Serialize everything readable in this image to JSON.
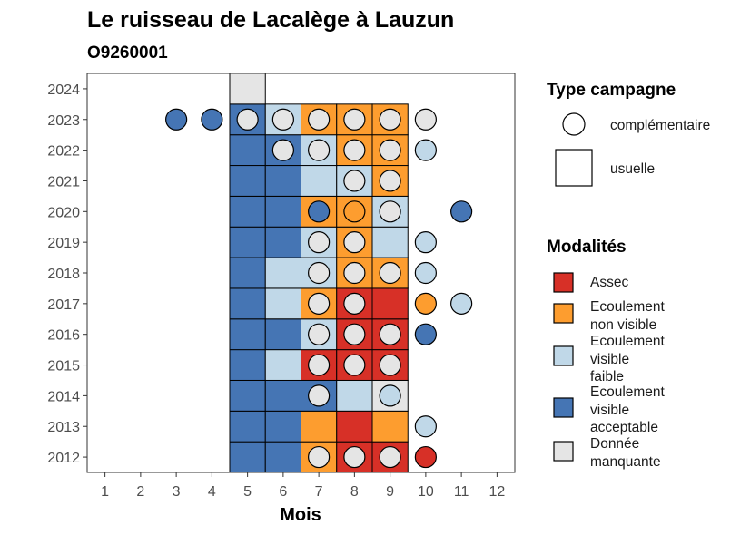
{
  "chart_data": {
    "type": "heatmap",
    "title": "Le ruisseau de Lacalège à Lauzun",
    "subtitle": "O9260001",
    "xlabel": "Mois",
    "ylabel": "",
    "x_ticks": [
      "1",
      "2",
      "3",
      "4",
      "5",
      "6",
      "7",
      "8",
      "9",
      "10",
      "11",
      "12"
    ],
    "y_ticks": [
      "2012",
      "2013",
      "2014",
      "2015",
      "2016",
      "2017",
      "2018",
      "2019",
      "2020",
      "2021",
      "2022",
      "2023",
      "2024"
    ],
    "xlim": [
      0.5,
      12.5
    ],
    "ylim": [
      2011.5,
      2024.5
    ],
    "grid": false,
    "legend_position": "right",
    "colors": {
      "assec": "#d73027",
      "ecoulement_non_visible": "#fd9d2f",
      "ecoulement_visible_faible": "#c0d8e8",
      "ecoulement_visible_acceptable": "#4575b4",
      "donnee_manquante": "#e5e5e5"
    },
    "legend": {
      "type_campagne": {
        "title": "Type campagne",
        "items": [
          {
            "key": "complementaire",
            "label": "complémentaire",
            "shape": "circle"
          },
          {
            "key": "usuelle",
            "label": "usuelle",
            "shape": "square"
          }
        ]
      },
      "modalites": {
        "title": "Modalités",
        "items": [
          {
            "key": "assec",
            "lines": [
              "Assec"
            ]
          },
          {
            "key": "ecoulement_non_visible",
            "lines": [
              "Ecoulement",
              "non visible"
            ]
          },
          {
            "key": "ecoulement_visible_faible",
            "lines": [
              "Ecoulement",
              "visible",
              "faible"
            ]
          },
          {
            "key": "ecoulement_visible_acceptable",
            "lines": [
              "Ecoulement",
              "visible",
              "acceptable"
            ]
          },
          {
            "key": "donnee_manquante",
            "lines": [
              "Donnée",
              "manquante"
            ]
          }
        ]
      }
    },
    "usuelle": [
      {
        "year": 2012,
        "month": 5,
        "modalite": "ecoulement_visible_acceptable"
      },
      {
        "year": 2012,
        "month": 6,
        "modalite": "ecoulement_visible_acceptable"
      },
      {
        "year": 2012,
        "month": 7,
        "modalite": "ecoulement_non_visible"
      },
      {
        "year": 2012,
        "month": 8,
        "modalite": "assec"
      },
      {
        "year": 2012,
        "month": 9,
        "modalite": "assec"
      },
      {
        "year": 2013,
        "month": 5,
        "modalite": "ecoulement_visible_acceptable"
      },
      {
        "year": 2013,
        "month": 6,
        "modalite": "ecoulement_visible_acceptable"
      },
      {
        "year": 2013,
        "month": 7,
        "modalite": "ecoulement_non_visible"
      },
      {
        "year": 2013,
        "month": 8,
        "modalite": "assec"
      },
      {
        "year": 2013,
        "month": 9,
        "modalite": "ecoulement_non_visible"
      },
      {
        "year": 2014,
        "month": 5,
        "modalite": "ecoulement_visible_acceptable"
      },
      {
        "year": 2014,
        "month": 6,
        "modalite": "ecoulement_visible_acceptable"
      },
      {
        "year": 2014,
        "month": 7,
        "modalite": "ecoulement_visible_acceptable"
      },
      {
        "year": 2014,
        "month": 8,
        "modalite": "ecoulement_visible_faible"
      },
      {
        "year": 2014,
        "month": 9,
        "modalite": "donnee_manquante"
      },
      {
        "year": 2015,
        "month": 5,
        "modalite": "ecoulement_visible_acceptable"
      },
      {
        "year": 2015,
        "month": 6,
        "modalite": "ecoulement_visible_faible"
      },
      {
        "year": 2015,
        "month": 7,
        "modalite": "assec"
      },
      {
        "year": 2015,
        "month": 8,
        "modalite": "assec"
      },
      {
        "year": 2015,
        "month": 9,
        "modalite": "assec"
      },
      {
        "year": 2016,
        "month": 5,
        "modalite": "ecoulement_visible_acceptable"
      },
      {
        "year": 2016,
        "month": 6,
        "modalite": "ecoulement_visible_acceptable"
      },
      {
        "year": 2016,
        "month": 7,
        "modalite": "ecoulement_visible_faible"
      },
      {
        "year": 2016,
        "month": 8,
        "modalite": "assec"
      },
      {
        "year": 2016,
        "month": 9,
        "modalite": "assec"
      },
      {
        "year": 2017,
        "month": 5,
        "modalite": "ecoulement_visible_acceptable"
      },
      {
        "year": 2017,
        "month": 6,
        "modalite": "ecoulement_visible_faible"
      },
      {
        "year": 2017,
        "month": 7,
        "modalite": "ecoulement_non_visible"
      },
      {
        "year": 2017,
        "month": 8,
        "modalite": "assec"
      },
      {
        "year": 2017,
        "month": 9,
        "modalite": "assec"
      },
      {
        "year": 2018,
        "month": 5,
        "modalite": "ecoulement_visible_acceptable"
      },
      {
        "year": 2018,
        "month": 6,
        "modalite": "ecoulement_visible_faible"
      },
      {
        "year": 2018,
        "month": 7,
        "modalite": "ecoulement_visible_faible"
      },
      {
        "year": 2018,
        "month": 8,
        "modalite": "ecoulement_non_visible"
      },
      {
        "year": 2018,
        "month": 9,
        "modalite": "ecoulement_non_visible"
      },
      {
        "year": 2019,
        "month": 5,
        "modalite": "ecoulement_visible_acceptable"
      },
      {
        "year": 2019,
        "month": 6,
        "modalite": "ecoulement_visible_acceptable"
      },
      {
        "year": 2019,
        "month": 7,
        "modalite": "ecoulement_visible_faible"
      },
      {
        "year": 2019,
        "month": 8,
        "modalite": "ecoulement_non_visible"
      },
      {
        "year": 2019,
        "month": 9,
        "modalite": "ecoulement_visible_faible"
      },
      {
        "year": 2020,
        "month": 5,
        "modalite": "ecoulement_visible_acceptable"
      },
      {
        "year": 2020,
        "month": 6,
        "modalite": "ecoulement_visible_acceptable"
      },
      {
        "year": 2020,
        "month": 7,
        "modalite": "ecoulement_non_visible"
      },
      {
        "year": 2020,
        "month": 8,
        "modalite": "ecoulement_non_visible"
      },
      {
        "year": 2020,
        "month": 9,
        "modalite": "ecoulement_visible_faible"
      },
      {
        "year": 2021,
        "month": 5,
        "modalite": "ecoulement_visible_acceptable"
      },
      {
        "year": 2021,
        "month": 6,
        "modalite": "ecoulement_visible_acceptable"
      },
      {
        "year": 2021,
        "month": 7,
        "modalite": "ecoulement_visible_faible"
      },
      {
        "year": 2021,
        "month": 8,
        "modalite": "ecoulement_visible_faible"
      },
      {
        "year": 2021,
        "month": 9,
        "modalite": "ecoulement_non_visible"
      },
      {
        "year": 2022,
        "month": 5,
        "modalite": "ecoulement_visible_acceptable"
      },
      {
        "year": 2022,
        "month": 6,
        "modalite": "ecoulement_visible_acceptable"
      },
      {
        "year": 2022,
        "month": 7,
        "modalite": "ecoulement_visible_faible"
      },
      {
        "year": 2022,
        "month": 8,
        "modalite": "ecoulement_non_visible"
      },
      {
        "year": 2022,
        "month": 9,
        "modalite": "ecoulement_non_visible"
      },
      {
        "year": 2023,
        "month": 5,
        "modalite": "ecoulement_visible_acceptable"
      },
      {
        "year": 2023,
        "month": 6,
        "modalite": "ecoulement_visible_faible"
      },
      {
        "year": 2023,
        "month": 7,
        "modalite": "ecoulement_non_visible"
      },
      {
        "year": 2023,
        "month": 8,
        "modalite": "ecoulement_non_visible"
      },
      {
        "year": 2023,
        "month": 9,
        "modalite": "ecoulement_non_visible"
      },
      {
        "year": 2024,
        "month": 5,
        "modalite": "donnee_manquante"
      }
    ],
    "complementaire": [
      {
        "year": 2012,
        "month": 7,
        "modalite": "donnee_manquante"
      },
      {
        "year": 2012,
        "month": 8,
        "modalite": "donnee_manquante"
      },
      {
        "year": 2012,
        "month": 9,
        "modalite": "donnee_manquante"
      },
      {
        "year": 2012,
        "month": 10,
        "modalite": "assec"
      },
      {
        "year": 2013,
        "month": 10,
        "modalite": "ecoulement_visible_faible"
      },
      {
        "year": 2014,
        "month": 7,
        "modalite": "donnee_manquante"
      },
      {
        "year": 2014,
        "month": 9,
        "modalite": "ecoulement_visible_faible"
      },
      {
        "year": 2015,
        "month": 7,
        "modalite": "donnee_manquante"
      },
      {
        "year": 2015,
        "month": 8,
        "modalite": "donnee_manquante"
      },
      {
        "year": 2015,
        "month": 9,
        "modalite": "donnee_manquante"
      },
      {
        "year": 2016,
        "month": 7,
        "modalite": "donnee_manquante"
      },
      {
        "year": 2016,
        "month": 8,
        "modalite": "donnee_manquante"
      },
      {
        "year": 2016,
        "month": 9,
        "modalite": "donnee_manquante"
      },
      {
        "year": 2016,
        "month": 10,
        "modalite": "ecoulement_visible_acceptable"
      },
      {
        "year": 2017,
        "month": 7,
        "modalite": "donnee_manquante"
      },
      {
        "year": 2017,
        "month": 8,
        "modalite": "donnee_manquante"
      },
      {
        "year": 2017,
        "month": 10,
        "modalite": "ecoulement_non_visible"
      },
      {
        "year": 2017,
        "month": 11,
        "modalite": "ecoulement_visible_faible"
      },
      {
        "year": 2018,
        "month": 7,
        "modalite": "donnee_manquante"
      },
      {
        "year": 2018,
        "month": 8,
        "modalite": "donnee_manquante"
      },
      {
        "year": 2018,
        "month": 9,
        "modalite": "donnee_manquante"
      },
      {
        "year": 2018,
        "month": 10,
        "modalite": "ecoulement_visible_faible"
      },
      {
        "year": 2019,
        "month": 7,
        "modalite": "donnee_manquante"
      },
      {
        "year": 2019,
        "month": 8,
        "modalite": "donnee_manquante"
      },
      {
        "year": 2019,
        "month": 10,
        "modalite": "ecoulement_visible_faible"
      },
      {
        "year": 2020,
        "month": 7,
        "modalite": "ecoulement_visible_acceptable"
      },
      {
        "year": 2020,
        "month": 8,
        "modalite": "ecoulement_non_visible"
      },
      {
        "year": 2020,
        "month": 9,
        "modalite": "donnee_manquante"
      },
      {
        "year": 2020,
        "month": 11,
        "modalite": "ecoulement_visible_acceptable"
      },
      {
        "year": 2021,
        "month": 8,
        "modalite": "donnee_manquante"
      },
      {
        "year": 2021,
        "month": 9,
        "modalite": "donnee_manquante"
      },
      {
        "year": 2022,
        "month": 6,
        "modalite": "donnee_manquante"
      },
      {
        "year": 2022,
        "month": 7,
        "modalite": "donnee_manquante"
      },
      {
        "year": 2022,
        "month": 8,
        "modalite": "donnee_manquante"
      },
      {
        "year": 2022,
        "month": 9,
        "modalite": "donnee_manquante"
      },
      {
        "year": 2022,
        "month": 10,
        "modalite": "ecoulement_visible_faible"
      },
      {
        "year": 2023,
        "month": 3,
        "modalite": "ecoulement_visible_acceptable"
      },
      {
        "year": 2023,
        "month": 4,
        "modalite": "ecoulement_visible_acceptable"
      },
      {
        "year": 2023,
        "month": 5,
        "modalite": "donnee_manquante"
      },
      {
        "year": 2023,
        "month": 6,
        "modalite": "donnee_manquante"
      },
      {
        "year": 2023,
        "month": 7,
        "modalite": "donnee_manquante"
      },
      {
        "year": 2023,
        "month": 8,
        "modalite": "donnee_manquante"
      },
      {
        "year": 2023,
        "month": 9,
        "modalite": "donnee_manquante"
      },
      {
        "year": 2023,
        "month": 10,
        "modalite": "donnee_manquante"
      }
    ]
  }
}
